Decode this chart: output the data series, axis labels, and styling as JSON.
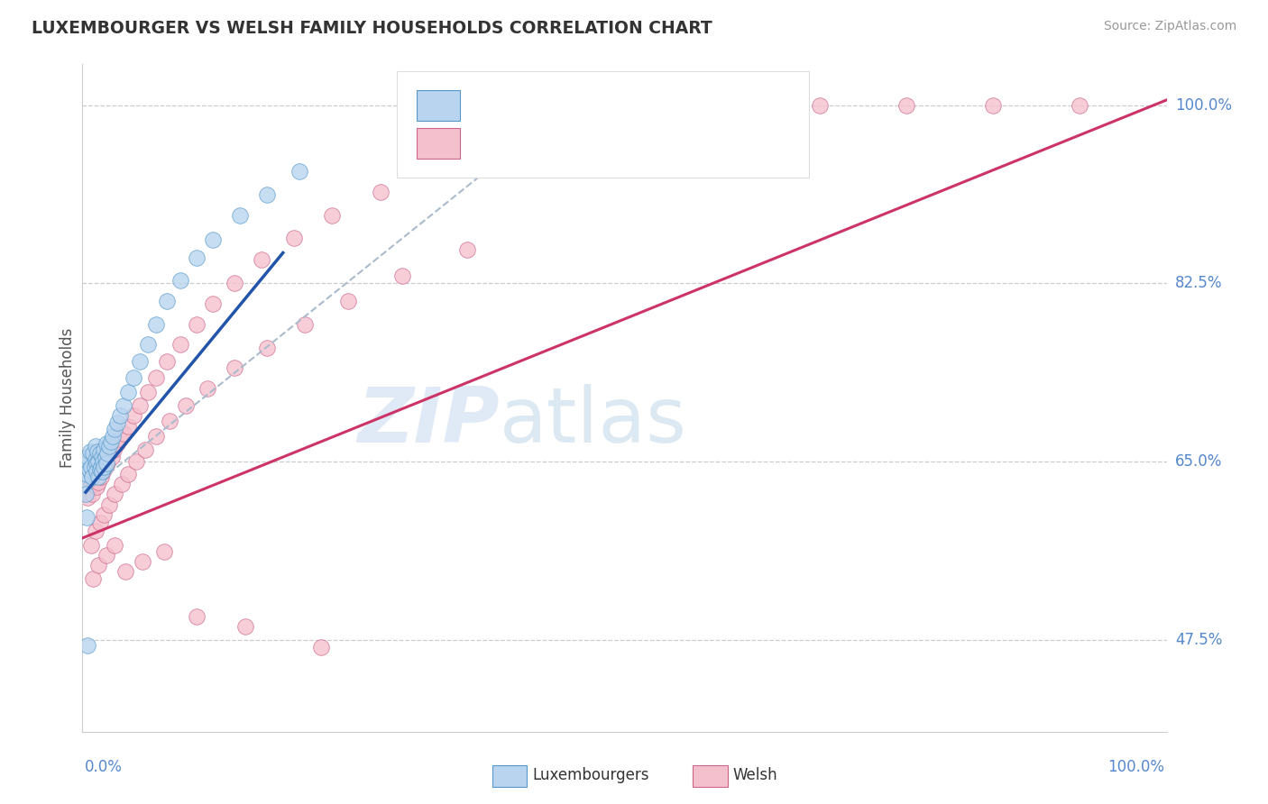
{
  "title": "LUXEMBOURGER VS WELSH FAMILY HOUSEHOLDS CORRELATION CHART",
  "source": "Source: ZipAtlas.com",
  "ylabel": "Family Households",
  "y_ticks": [
    0.475,
    0.65,
    0.825,
    1.0
  ],
  "y_tick_labels": [
    "47.5%",
    "65.0%",
    "82.5%",
    "100.0%"
  ],
  "xlim": [
    0.0,
    1.0
  ],
  "ylim": [
    0.385,
    1.04
  ],
  "bottom_legend_lux": "Luxembourgers",
  "bottom_legend_welsh": "Welsh",
  "blue_fill": "#b8d4ee",
  "pink_fill": "#f5c0ce",
  "blue_edge": "#5599cc",
  "pink_edge": "#cc6688",
  "blue_line": "#2255aa",
  "pink_line": "#cc3366",
  "dash_line": "#aabbcc",
  "title_color": "#333333",
  "axis_label_color": "#5588cc",
  "ylabel_color": "#555555",
  "source_color": "#999999",
  "legend_text_blue_color": "#2255aa",
  "legend_text_pink_color": "#cc3366",
  "bottom_text_color": "#333333",
  "blue_line_x0": 0.003,
  "blue_line_y0": 0.62,
  "blue_line_x1": 0.185,
  "blue_line_y1": 0.855,
  "dash_line_x0": 0.003,
  "dash_line_y0": 0.62,
  "dash_line_x1": 0.46,
  "dash_line_y1": 1.01,
  "pink_line_x0": 0.0,
  "pink_line_y0": 0.575,
  "pink_line_x1": 1.0,
  "pink_line_y1": 1.005,
  "lux_x": [
    0.002,
    0.003,
    0.004,
    0.005,
    0.006,
    0.007,
    0.008,
    0.009,
    0.01,
    0.011,
    0.012,
    0.012,
    0.013,
    0.013,
    0.014,
    0.015,
    0.015,
    0.016,
    0.016,
    0.017,
    0.018,
    0.018,
    0.019,
    0.02,
    0.02,
    0.021,
    0.022,
    0.022,
    0.023,
    0.025,
    0.026,
    0.028,
    0.03,
    0.032,
    0.035,
    0.038,
    0.042,
    0.047,
    0.053,
    0.06,
    0.068,
    0.078,
    0.09,
    0.105,
    0.12,
    0.145,
    0.17,
    0.2,
    0.003,
    0.004,
    0.005
  ],
  "lux_y": [
    0.628,
    0.648,
    0.638,
    0.655,
    0.642,
    0.66,
    0.645,
    0.635,
    0.658,
    0.645,
    0.652,
    0.665,
    0.648,
    0.64,
    0.66,
    0.635,
    0.65,
    0.642,
    0.658,
    0.645,
    0.655,
    0.64,
    0.65,
    0.662,
    0.645,
    0.655,
    0.648,
    0.668,
    0.658,
    0.665,
    0.67,
    0.675,
    0.682,
    0.688,
    0.695,
    0.705,
    0.718,
    0.732,
    0.748,
    0.765,
    0.785,
    0.808,
    0.828,
    0.85,
    0.868,
    0.892,
    0.912,
    0.935,
    0.618,
    0.595,
    0.47
  ],
  "welsh_x": [
    0.003,
    0.004,
    0.005,
    0.006,
    0.007,
    0.008,
    0.009,
    0.01,
    0.011,
    0.012,
    0.013,
    0.014,
    0.015,
    0.016,
    0.017,
    0.018,
    0.019,
    0.02,
    0.021,
    0.022,
    0.023,
    0.025,
    0.027,
    0.029,
    0.032,
    0.035,
    0.038,
    0.042,
    0.047,
    0.053,
    0.06,
    0.068,
    0.078,
    0.09,
    0.105,
    0.12,
    0.14,
    0.165,
    0.195,
    0.23,
    0.275,
    0.325,
    0.385,
    0.45,
    0.52,
    0.6,
    0.68,
    0.76,
    0.84,
    0.92,
    0.008,
    0.012,
    0.016,
    0.02,
    0.025,
    0.03,
    0.036,
    0.042,
    0.05,
    0.058,
    0.068,
    0.08,
    0.095,
    0.115,
    0.14,
    0.17,
    0.205,
    0.245,
    0.295,
    0.355,
    0.01,
    0.015,
    0.022,
    0.03,
    0.04,
    0.055,
    0.075,
    0.105,
    0.15,
    0.22
  ],
  "welsh_y": [
    0.62,
    0.635,
    0.615,
    0.64,
    0.625,
    0.638,
    0.618,
    0.645,
    0.628,
    0.64,
    0.625,
    0.642,
    0.63,
    0.648,
    0.635,
    0.652,
    0.64,
    0.655,
    0.645,
    0.658,
    0.648,
    0.66,
    0.655,
    0.662,
    0.668,
    0.672,
    0.678,
    0.685,
    0.695,
    0.705,
    0.718,
    0.732,
    0.748,
    0.765,
    0.785,
    0.805,
    0.825,
    0.848,
    0.87,
    0.892,
    0.915,
    0.938,
    0.958,
    0.975,
    0.988,
    0.998,
    1.0,
    1.0,
    1.0,
    1.0,
    0.568,
    0.582,
    0.59,
    0.598,
    0.608,
    0.618,
    0.628,
    0.638,
    0.65,
    0.662,
    0.675,
    0.69,
    0.705,
    0.722,
    0.742,
    0.762,
    0.785,
    0.808,
    0.832,
    0.858,
    0.535,
    0.548,
    0.558,
    0.568,
    0.542,
    0.552,
    0.562,
    0.498,
    0.488,
    0.468
  ]
}
